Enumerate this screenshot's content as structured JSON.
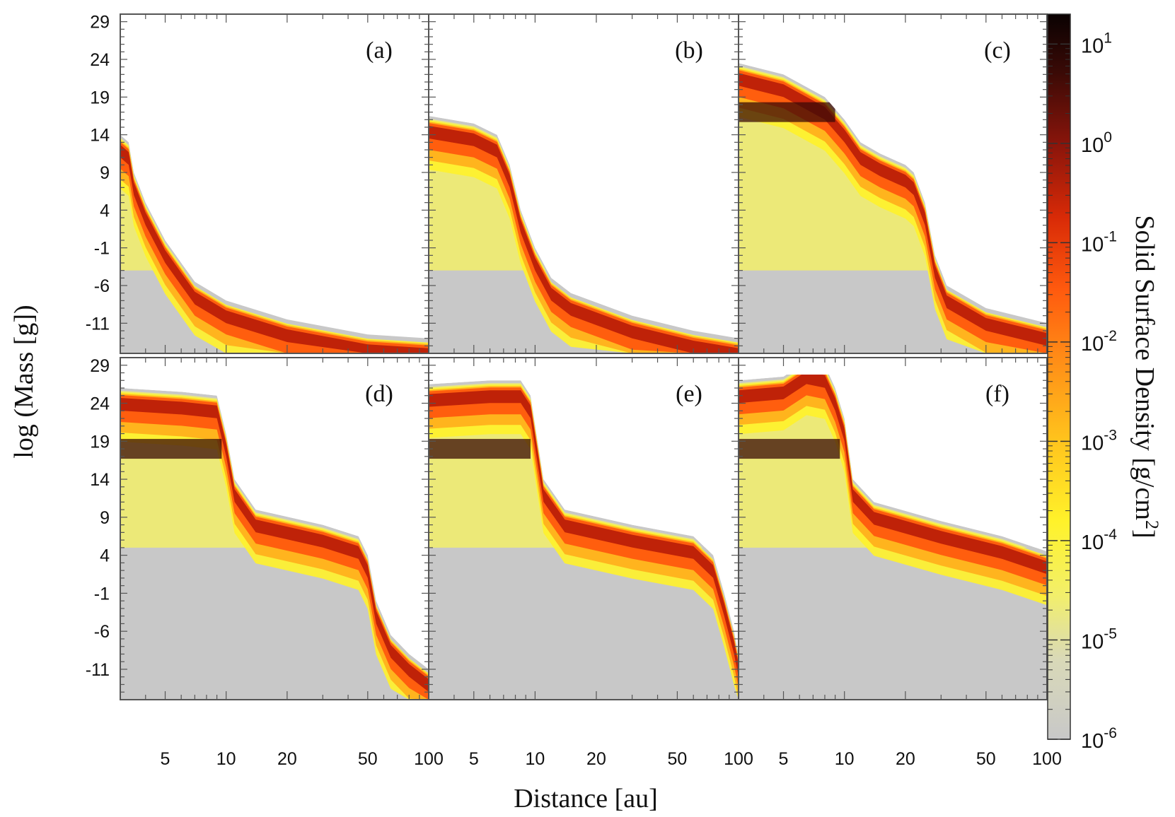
{
  "chart_data": {
    "type": "heatmap",
    "title": "",
    "xlabel": "Distance [au]",
    "ylabel": "log (Mass [g])",
    "x_scale": "log",
    "xlim": [
      3,
      100
    ],
    "ylim": [
      -15,
      30
    ],
    "x_ticks": [
      5,
      10,
      20,
      50,
      100
    ],
    "x_tick_labels": [
      "5",
      "10",
      "20",
      "50",
      "100"
    ],
    "y_ticks": [
      29,
      24,
      19,
      14,
      9,
      4,
      -1,
      -6,
      -11
    ],
    "y_tick_labels": [
      "29",
      "24",
      "19",
      "14",
      "9",
      "4",
      "-1",
      "-6",
      "-11"
    ],
    "colorbar": {
      "label": "Solid Surface Density [g/cm",
      "label_sup": "2",
      "label_end": "]",
      "scale": "log",
      "range": [
        1e-06,
        20
      ],
      "ticks": [
        {
          "base": "10",
          "exp": "1"
        },
        {
          "base": "10",
          "exp": "0"
        },
        {
          "base": "10",
          "exp": "-1"
        },
        {
          "base": "10",
          "exp": "-2"
        },
        {
          "base": "10",
          "exp": "-3"
        },
        {
          "base": "10",
          "exp": "-4"
        },
        {
          "base": "10",
          "exp": "-5"
        },
        {
          "base": "10",
          "exp": "-6"
        }
      ],
      "tick_exponents": [
        1,
        0,
        -1,
        -2,
        -3,
        -4,
        -5,
        -6
      ],
      "colors": [
        "#c8c8c8",
        "#e6e6a0",
        "#fff22a",
        "#ffd21e",
        "#ffa31a",
        "#ff6a0f",
        "#ea2d06",
        "#a8160a",
        "#5a0f0a",
        "#1a0504"
      ]
    },
    "panels": [
      {
        "label": "(a)",
        "upper_edge": [
          [
            3.0,
            14
          ],
          [
            3.3,
            13
          ],
          [
            3.5,
            9
          ],
          [
            4,
            5
          ],
          [
            5,
            0
          ],
          [
            6,
            -3
          ],
          [
            7,
            -5.5
          ],
          [
            10,
            -8
          ],
          [
            20,
            -10.5
          ],
          [
            50,
            -12.5
          ],
          [
            100,
            -13
          ]
        ],
        "peak_log_density": -0.4
      },
      {
        "label": "(b)",
        "upper_edge": [
          [
            3.0,
            16.5
          ],
          [
            5,
            15.5
          ],
          [
            6.5,
            14
          ],
          [
            7.5,
            10
          ],
          [
            8.5,
            4
          ],
          [
            10,
            -1
          ],
          [
            12,
            -5
          ],
          [
            15,
            -7
          ],
          [
            30,
            -10
          ],
          [
            60,
            -12
          ],
          [
            100,
            -13
          ]
        ],
        "peak_log_density": 0.2
      },
      {
        "label": "(c)",
        "upper_edge": [
          [
            3.0,
            23.5
          ],
          [
            5,
            22
          ],
          [
            8,
            19
          ],
          [
            10,
            16
          ],
          [
            12,
            13
          ],
          [
            15,
            11.5
          ],
          [
            20,
            10
          ],
          [
            22,
            9
          ],
          [
            25,
            5
          ],
          [
            28,
            -2
          ],
          [
            32,
            -6
          ],
          [
            50,
            -9
          ],
          [
            100,
            -11
          ]
        ],
        "peak_log_density": 0.6
      },
      {
        "label": "(d)",
        "upper_edge": [
          [
            3.0,
            26
          ],
          [
            6,
            25.5
          ],
          [
            9,
            25
          ],
          [
            10,
            20
          ],
          [
            11,
            14
          ],
          [
            14,
            10
          ],
          [
            30,
            8
          ],
          [
            45,
            6.5
          ],
          [
            50,
            4
          ],
          [
            55,
            -2
          ],
          [
            65,
            -6.5
          ],
          [
            80,
            -9
          ],
          [
            100,
            -11
          ]
        ],
        "peak_log_density": 0.8
      },
      {
        "label": "(e)",
        "upper_edge": [
          [
            3.0,
            26.5
          ],
          [
            6,
            27
          ],
          [
            8.5,
            27
          ],
          [
            9.5,
            25
          ],
          [
            11,
            14
          ],
          [
            14,
            10
          ],
          [
            30,
            8
          ],
          [
            60,
            6.5
          ],
          [
            75,
            4
          ],
          [
            85,
            -1
          ],
          [
            95,
            -6
          ],
          [
            100,
            -9
          ]
        ],
        "peak_log_density": 0.9
      },
      {
        "label": "(f)",
        "upper_edge": [
          [
            3.0,
            27
          ],
          [
            5,
            27.5
          ],
          [
            6.5,
            29.5
          ],
          [
            8,
            29
          ],
          [
            9,
            26
          ],
          [
            10,
            22
          ],
          [
            11,
            14
          ],
          [
            14,
            11
          ],
          [
            30,
            8.5
          ],
          [
            60,
            6.5
          ],
          [
            100,
            4.5
          ]
        ],
        "peak_log_density": 1.0
      }
    ]
  }
}
